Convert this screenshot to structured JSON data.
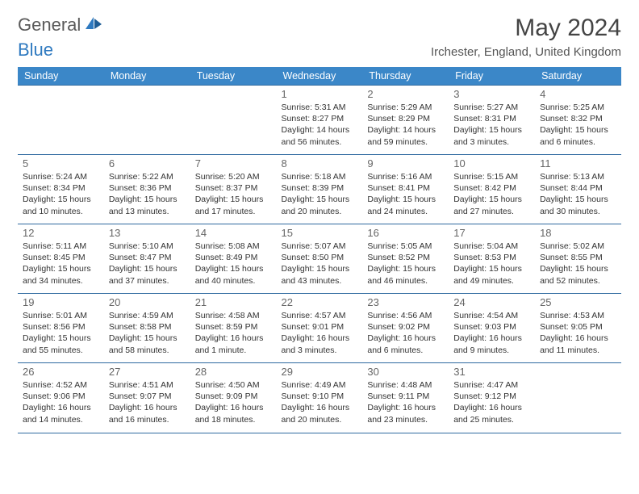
{
  "colors": {
    "header_bg": "#3b87c8",
    "header_text": "#ffffff",
    "row_border": "#2f6aa0",
    "text": "#333333",
    "muted": "#666666",
    "logo_gray": "#5a5a5a",
    "logo_blue": "#2f7ac0",
    "sail_fill": "#2f7ac0"
  },
  "logo": {
    "word1": "General",
    "word2": "Blue"
  },
  "title": "May 2024",
  "location": "Irchester, England, United Kingdom",
  "day_headers": [
    "Sunday",
    "Monday",
    "Tuesday",
    "Wednesday",
    "Thursday",
    "Friday",
    "Saturday"
  ],
  "fonts": {
    "title_size": 30,
    "subtitle_size": 15,
    "header_size": 12.5,
    "daynum_size": 13,
    "info_size": 10.5
  },
  "weeks": [
    [
      null,
      null,
      null,
      {
        "n": "1",
        "sunrise": "5:31 AM",
        "sunset": "8:27 PM",
        "daylight": "14 hours and 56 minutes."
      },
      {
        "n": "2",
        "sunrise": "5:29 AM",
        "sunset": "8:29 PM",
        "daylight": "14 hours and 59 minutes."
      },
      {
        "n": "3",
        "sunrise": "5:27 AM",
        "sunset": "8:31 PM",
        "daylight": "15 hours and 3 minutes."
      },
      {
        "n": "4",
        "sunrise": "5:25 AM",
        "sunset": "8:32 PM",
        "daylight": "15 hours and 6 minutes."
      }
    ],
    [
      {
        "n": "5",
        "sunrise": "5:24 AM",
        "sunset": "8:34 PM",
        "daylight": "15 hours and 10 minutes."
      },
      {
        "n": "6",
        "sunrise": "5:22 AM",
        "sunset": "8:36 PM",
        "daylight": "15 hours and 13 minutes."
      },
      {
        "n": "7",
        "sunrise": "5:20 AM",
        "sunset": "8:37 PM",
        "daylight": "15 hours and 17 minutes."
      },
      {
        "n": "8",
        "sunrise": "5:18 AM",
        "sunset": "8:39 PM",
        "daylight": "15 hours and 20 minutes."
      },
      {
        "n": "9",
        "sunrise": "5:16 AM",
        "sunset": "8:41 PM",
        "daylight": "15 hours and 24 minutes."
      },
      {
        "n": "10",
        "sunrise": "5:15 AM",
        "sunset": "8:42 PM",
        "daylight": "15 hours and 27 minutes."
      },
      {
        "n": "11",
        "sunrise": "5:13 AM",
        "sunset": "8:44 PM",
        "daylight": "15 hours and 30 minutes."
      }
    ],
    [
      {
        "n": "12",
        "sunrise": "5:11 AM",
        "sunset": "8:45 PM",
        "daylight": "15 hours and 34 minutes."
      },
      {
        "n": "13",
        "sunrise": "5:10 AM",
        "sunset": "8:47 PM",
        "daylight": "15 hours and 37 minutes."
      },
      {
        "n": "14",
        "sunrise": "5:08 AM",
        "sunset": "8:49 PM",
        "daylight": "15 hours and 40 minutes."
      },
      {
        "n": "15",
        "sunrise": "5:07 AM",
        "sunset": "8:50 PM",
        "daylight": "15 hours and 43 minutes."
      },
      {
        "n": "16",
        "sunrise": "5:05 AM",
        "sunset": "8:52 PM",
        "daylight": "15 hours and 46 minutes."
      },
      {
        "n": "17",
        "sunrise": "5:04 AM",
        "sunset": "8:53 PM",
        "daylight": "15 hours and 49 minutes."
      },
      {
        "n": "18",
        "sunrise": "5:02 AM",
        "sunset": "8:55 PM",
        "daylight": "15 hours and 52 minutes."
      }
    ],
    [
      {
        "n": "19",
        "sunrise": "5:01 AM",
        "sunset": "8:56 PM",
        "daylight": "15 hours and 55 minutes."
      },
      {
        "n": "20",
        "sunrise": "4:59 AM",
        "sunset": "8:58 PM",
        "daylight": "15 hours and 58 minutes."
      },
      {
        "n": "21",
        "sunrise": "4:58 AM",
        "sunset": "8:59 PM",
        "daylight": "16 hours and 1 minute."
      },
      {
        "n": "22",
        "sunrise": "4:57 AM",
        "sunset": "9:01 PM",
        "daylight": "16 hours and 3 minutes."
      },
      {
        "n": "23",
        "sunrise": "4:56 AM",
        "sunset": "9:02 PM",
        "daylight": "16 hours and 6 minutes."
      },
      {
        "n": "24",
        "sunrise": "4:54 AM",
        "sunset": "9:03 PM",
        "daylight": "16 hours and 9 minutes."
      },
      {
        "n": "25",
        "sunrise": "4:53 AM",
        "sunset": "9:05 PM",
        "daylight": "16 hours and 11 minutes."
      }
    ],
    [
      {
        "n": "26",
        "sunrise": "4:52 AM",
        "sunset": "9:06 PM",
        "daylight": "16 hours and 14 minutes."
      },
      {
        "n": "27",
        "sunrise": "4:51 AM",
        "sunset": "9:07 PM",
        "daylight": "16 hours and 16 minutes."
      },
      {
        "n": "28",
        "sunrise": "4:50 AM",
        "sunset": "9:09 PM",
        "daylight": "16 hours and 18 minutes."
      },
      {
        "n": "29",
        "sunrise": "4:49 AM",
        "sunset": "9:10 PM",
        "daylight": "16 hours and 20 minutes."
      },
      {
        "n": "30",
        "sunrise": "4:48 AM",
        "sunset": "9:11 PM",
        "daylight": "16 hours and 23 minutes."
      },
      {
        "n": "31",
        "sunrise": "4:47 AM",
        "sunset": "9:12 PM",
        "daylight": "16 hours and 25 minutes."
      },
      null
    ]
  ],
  "labels": {
    "sunrise": "Sunrise:",
    "sunset": "Sunset:",
    "daylight": "Daylight:"
  }
}
